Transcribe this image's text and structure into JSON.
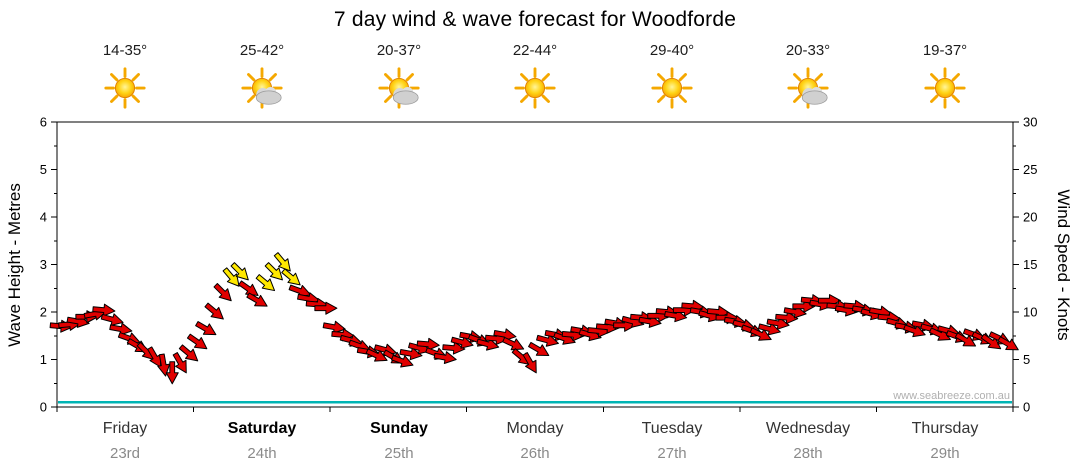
{
  "title": "7 day wind & wave forecast for Woodforde",
  "watermark": "www.seabreeze.com.au",
  "days": [
    {
      "temp": "14-35°",
      "icon": "sun",
      "name": "Friday",
      "date": "23rd",
      "weekend": false
    },
    {
      "temp": "25-42°",
      "icon": "sun-cloud",
      "name": "Saturday",
      "date": "24th",
      "weekend": true
    },
    {
      "temp": "20-37°",
      "icon": "sun-cloud",
      "name": "Sunday",
      "date": "25th",
      "weekend": true
    },
    {
      "temp": "22-44°",
      "icon": "sun",
      "name": "Monday",
      "date": "26th",
      "weekend": false
    },
    {
      "temp": "29-40°",
      "icon": "sun",
      "name": "Tuesday",
      "date": "27th",
      "weekend": false
    },
    {
      "temp": "20-33°",
      "icon": "sun-cloud",
      "name": "Wednesday",
      "date": "28th",
      "weekend": false
    },
    {
      "temp": "19-37°",
      "icon": "sun",
      "name": "Thursday",
      "date": "29th",
      "weekend": false
    }
  ],
  "axes": {
    "left_label": "Wave Height - Metres",
    "right_label": "Wind Speed - Knots",
    "left_ticks": [
      0,
      1,
      2,
      3,
      4,
      5,
      6
    ],
    "right_ticks": [
      0,
      5,
      10,
      15,
      20,
      25,
      30
    ]
  },
  "chart_data": {
    "type": "line",
    "title": "7 day wind & wave forecast for Woodforde",
    "x_categories": [
      "Friday 23rd",
      "Saturday 24th",
      "Sunday 25th",
      "Monday 26th",
      "Tuesday 27th",
      "Wednesday 28th",
      "Thursday 29th"
    ],
    "points_per_day": 16,
    "ylabel_left": "Wave Height - Metres",
    "ylabel_right": "Wind Speed - Knots",
    "ylim_left_metres": [
      0,
      6
    ],
    "ylim_right_knots": [
      0,
      30
    ],
    "grid": false,
    "series": [
      {
        "name": "Wind Speed",
        "units": "knots",
        "marker": "arrow",
        "color_normal": "#e10000",
        "color_strong": "#ffe800",
        "strong_threshold_knots": 12.5,
        "values": [
          8.5,
          8.7,
          9.0,
          9.5,
          9.8,
          10.2,
          9.2,
          8.2,
          7.2,
          6.4,
          5.8,
          5.2,
          4.4,
          3.6,
          4.6,
          5.6,
          6.8,
          8.2,
          10.0,
          12.0,
          13.6,
          14.2,
          12.4,
          11.2,
          13.0,
          14.2,
          15.2,
          13.6,
          12.2,
          11.4,
          10.8,
          10.4,
          8.4,
          7.6,
          7.0,
          6.4,
          5.8,
          5.4,
          6.0,
          5.2,
          4.8,
          5.6,
          6.2,
          6.6,
          5.6,
          5.2,
          6.2,
          6.8,
          7.4,
          7.0,
          6.6,
          7.2,
          7.6,
          6.6,
          5.2,
          4.6,
          6.0,
          7.0,
          7.6,
          7.2,
          7.6,
          8.0,
          7.6,
          8.0,
          8.4,
          8.8,
          8.6,
          9.0,
          9.4,
          9.0,
          9.6,
          10.0,
          9.6,
          10.2,
          10.6,
          10.0,
          9.6,
          10.0,
          9.4,
          9.0,
          8.6,
          8.0,
          7.6,
          8.2,
          8.8,
          9.4,
          10.0,
          10.6,
          11.2,
          10.8,
          11.2,
          10.6,
          10.2,
          10.6,
          10.2,
          9.8,
          10.0,
          9.4,
          8.8,
          8.4,
          8.0,
          8.6,
          8.2,
          7.6,
          8.0,
          7.4,
          7.0,
          7.6,
          7.2,
          6.8,
          7.2,
          6.6
        ],
        "rotations_deg": [
          5,
          -5,
          10,
          0,
          -10,
          5,
          15,
          10,
          20,
          30,
          45,
          60,
          80,
          90,
          60,
          40,
          35,
          30,
          40,
          45,
          50,
          45,
          35,
          30,
          40,
          45,
          50,
          40,
          20,
          10,
          5,
          0,
          10,
          5,
          15,
          20,
          10,
          25,
          15,
          30,
          20,
          10,
          15,
          5,
          20,
          10,
          5,
          15,
          10,
          20,
          15,
          5,
          10,
          25,
          40,
          60,
          30,
          15,
          10,
          20,
          5,
          10,
          15,
          5,
          5,
          10,
          0,
          15,
          5,
          10,
          0,
          5,
          10,
          0,
          5,
          10,
          15,
          5,
          0,
          10,
          15,
          20,
          25,
          15,
          10,
          5,
          10,
          0,
          5,
          10,
          0,
          5,
          10,
          5,
          10,
          15,
          10,
          5,
          15,
          10,
          20,
          10,
          15,
          25,
          15,
          20,
          30,
          20,
          25,
          35,
          25,
          30
        ]
      },
      {
        "name": "Wave Height",
        "units": "metres",
        "marker": "line",
        "color": "#00b4b4",
        "values_per_day": [
          0.1,
          0.1,
          0.1,
          0.1,
          0.1,
          0.1,
          0.1
        ]
      }
    ]
  }
}
